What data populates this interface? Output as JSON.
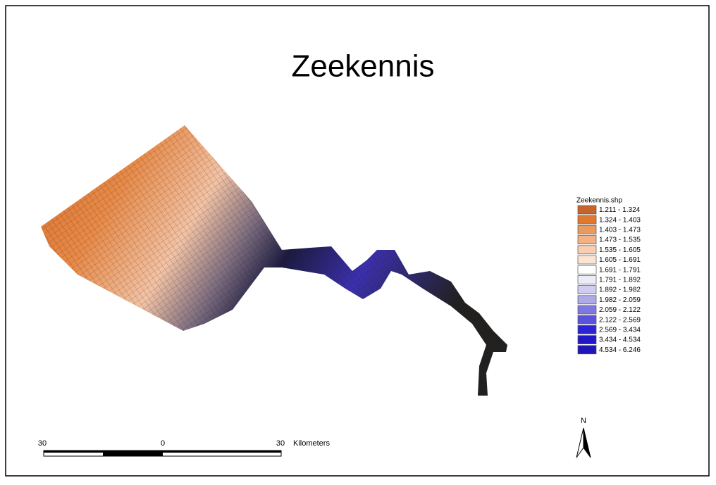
{
  "title": "Zeekennis",
  "legend": {
    "title": "Zeekennis.shp",
    "items": [
      {
        "label": "1.211 - 1.324",
        "color": "#c8642a"
      },
      {
        "label": "1.324 - 1.403",
        "color": "#e0782e"
      },
      {
        "label": "1.403 - 1.473",
        "color": "#ec9a5c"
      },
      {
        "label": "1.473 - 1.535",
        "color": "#f4b184"
      },
      {
        "label": "1.535 - 1.605",
        "color": "#f8cdb0"
      },
      {
        "label": "1.605 - 1.691",
        "color": "#fbe4d4"
      },
      {
        "label": "1.691 - 1.791",
        "color": "#ffffff"
      },
      {
        "label": "1.791 - 1.892",
        "color": "#ecebf8"
      },
      {
        "label": "1.892 - 1.982",
        "color": "#cfcdf0"
      },
      {
        "label": "1.982 - 2.059",
        "color": "#aeaae8"
      },
      {
        "label": "2.059 - 2.122",
        "color": "#7f78e0"
      },
      {
        "label": "2.122 - 2.569",
        "color": "#5a52dc"
      },
      {
        "label": "2.569 - 3.434",
        "color": "#2c22d8"
      },
      {
        "label": "3.434 - 4.534",
        "color": "#1f17c8"
      },
      {
        "label": "4.534 - 6.246",
        "color": "#2015b8"
      }
    ]
  },
  "scale_bar": {
    "labels": [
      "30",
      "0",
      "30"
    ],
    "unit": "Kilometers"
  },
  "north_arrow": {
    "label": "N"
  }
}
